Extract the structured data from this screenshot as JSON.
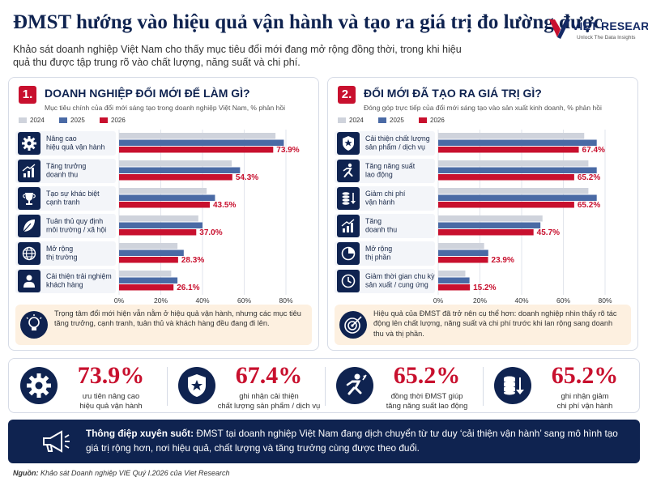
{
  "header": {
    "title": "ĐMST hướng vào hiệu quả vận hành và tạo ra giá trị đo lường được",
    "subtitle": "Khảo sát doanh nghiệp Việt Nam cho thấy mục tiêu đổi mới đang mở rộng đồng thời, trong khi hiệu quả thu được tập trung rõ vào chất lượng, năng suất và chi phí.",
    "logo_name": "VIET RESEARCH",
    "logo_tagline": "Unlock The Data Insights"
  },
  "colors": {
    "navy": "#0f2350",
    "red": "#c8102e",
    "s2024": "#cfd3dc",
    "s2025": "#4a6aa5",
    "s2026": "#c8102e"
  },
  "panels": [
    {
      "number": "1.",
      "title": "DOANH NGHIỆP ĐỔI MỚI ĐỂ LÀM GÌ?",
      "subtitle": "Mục tiêu chính của đổi mới sáng tạo trong doanh nghiệp Việt Nam, % phản hồi",
      "callout": "Trọng tâm đổi mới hiện vẫn nằm ở hiệu quả vận hành, nhưng các mục tiêu tăng trưởng, cạnh tranh, tuân thủ và khách hàng đều đang đi lên.",
      "callout_icon": "lightbulb-icon"
    },
    {
      "number": "2.",
      "title": "ĐỔI MỚI ĐÃ TẠO RA GIÁ TRỊ GÌ?",
      "subtitle": "Đóng góp trực tiếp của đổi mới sáng tạo vào sản xuất kinh doanh, % phản hồi",
      "callout": "Hiệu quả của ĐMST đã trở nên cụ thể hơn: doanh nghiệp nhìn thấy rõ tác động lên chất lượng, năng suất và chi phí trước khi lan rộng sang doanh thu và thị phần.",
      "callout_icon": "target-icon"
    }
  ],
  "chart_data": [
    {
      "type": "bar",
      "orientation": "horizontal",
      "categories": [
        "Nâng cao\nhiệu quả vận hành",
        "Tăng trưởng\ndoanh thu",
        "Tạo sự khác biệt\ncạnh tranh",
        "Tuân thủ quy định\nmôi trường / xã hội",
        "Mở rộng\nthị trường",
        "Cải thiện trải nghiệm\nkhách hàng"
      ],
      "category_icons": [
        "gear-icon",
        "growth-chart-icon",
        "trophy-icon",
        "leaf-icon",
        "globe-icon",
        "person-icon"
      ],
      "series": [
        {
          "name": "2024",
          "values": [
            75,
            54,
            42,
            38,
            28,
            25
          ]
        },
        {
          "name": "2025",
          "values": [
            79,
            58,
            46,
            40,
            31,
            28
          ]
        },
        {
          "name": "2026",
          "values": [
            73.9,
            54.3,
            43.5,
            37.0,
            28.3,
            26.1
          ]
        }
      ],
      "data_labels": [
        "73.9%",
        "54.3%",
        "43.5%",
        "37.0%",
        "28.3%",
        "26.1%"
      ],
      "xlim": [
        0,
        80
      ],
      "xticks": [
        "0%",
        "20%",
        "40%",
        "60%",
        "80%"
      ],
      "legend": "top-left"
    },
    {
      "type": "bar",
      "orientation": "horizontal",
      "categories": [
        "Cải thiện chất lượng\nsản phẩm / dịch vụ",
        "Tăng năng suất\nlao động",
        "Giảm chi phí\nvận hành",
        "Tăng\ndoanh thu",
        "Mở rộng\nthị phần",
        "Giảm thời gian chu kỳ\nsản xuất / cung ứng"
      ],
      "category_icons": [
        "shield-star-icon",
        "runner-icon",
        "coins-down-icon",
        "growth-chart-icon",
        "pie-icon",
        "clock-icon"
      ],
      "series": [
        {
          "name": "2024",
          "values": [
            70,
            72,
            72,
            50,
            22,
            13
          ]
        },
        {
          "name": "2025",
          "values": [
            76,
            76,
            76,
            49,
            24,
            15
          ]
        },
        {
          "name": "2026",
          "values": [
            67.4,
            65.2,
            65.2,
            45.7,
            23.9,
            15.2
          ]
        }
      ],
      "data_labels": [
        "67.4%",
        "65.2%",
        "65.2%",
        "45.7%",
        "23.9%",
        "15.2%"
      ],
      "xlim": [
        0,
        80
      ],
      "xticks": [
        "0%",
        "20%",
        "40%",
        "60%",
        "80%"
      ],
      "legend": "top-left"
    }
  ],
  "kpis": [
    {
      "value": "73.9%",
      "label": "ưu tiên nâng cao\nhiệu quả vận hành",
      "icon": "gear-icon"
    },
    {
      "value": "67.4%",
      "label": "ghi nhận cải thiện\nchất lượng sản phẩm / dịch vụ",
      "icon": "shield-star-icon"
    },
    {
      "value": "65.2%",
      "label": "đồng thời ĐMST giúp\ntăng năng suất lao động",
      "icon": "runner-icon"
    },
    {
      "value": "65.2%",
      "label": "ghi nhận giảm\nchi phí vận hành",
      "icon": "coins-down-icon"
    }
  ],
  "banner": {
    "lead": "Thông điệp xuyên suốt:",
    "text": "ĐMST tại doanh nghiệp Việt Nam đang dịch chuyển từ tư duy ‘cải thiện vận hành’ sang mô hình tạo giá trị rộng hơn, nơi hiệu quả, chất lượng và tăng trưởng cùng được theo đuổi.",
    "icon": "megaphone-icon"
  },
  "source": {
    "lead": "Nguồn:",
    "text": "Khảo sát Doanh nghiệp VIE Quý I.2026 của Viet Research"
  }
}
